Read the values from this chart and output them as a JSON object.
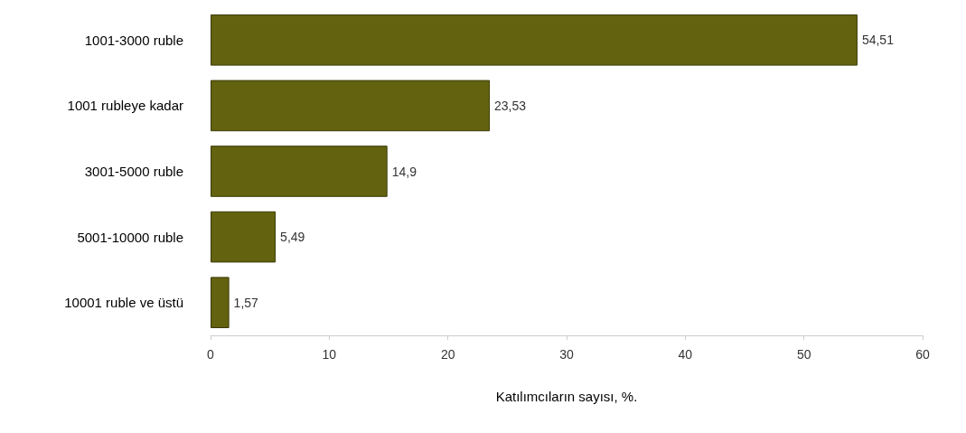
{
  "chart_data": {
    "type": "bar",
    "orientation": "horizontal",
    "xlabel": "Katılımcıların sayısı, %.",
    "categories": [
      "1001-3000 ruble",
      "1001 rubleye kadar",
      "3001-5000 ruble",
      "5001-10000 ruble",
      "10001 ruble ve üstü"
    ],
    "values": [
      54.51,
      23.53,
      14.9,
      5.49,
      1.57
    ],
    "value_labels": [
      "54,51",
      "23,53",
      "14,9",
      "5,49",
      "1,57"
    ],
    "color": "#62620f",
    "xlim": [
      0,
      60
    ],
    "xticks": [
      0,
      10,
      20,
      30,
      40,
      50,
      60
    ],
    "grid": false
  }
}
